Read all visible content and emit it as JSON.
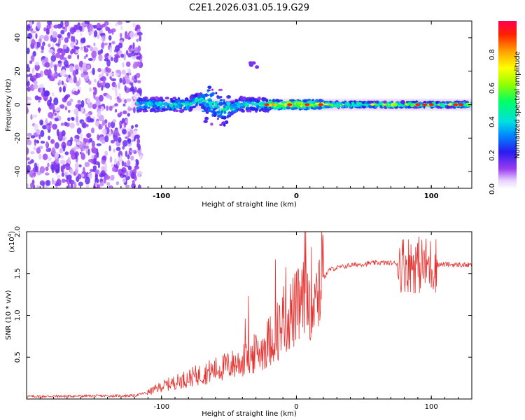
{
  "chart_data": [
    {
      "type": "heatmap",
      "title": "C2E1.2026.031.05.19.G29",
      "xlabel": "Height of straight line (km)",
      "ylabel": "Frequency (Hz)",
      "xlim": [
        -200,
        130
      ],
      "ylim": [
        -50,
        50
      ],
      "x_ticks": [
        -100,
        0,
        100
      ],
      "x_tick_labels": [
        "-100",
        "0",
        "100"
      ],
      "y_ticks": [
        -40,
        -20,
        0,
        20,
        40
      ],
      "y_tick_labels": [
        "-40",
        "-20",
        "0",
        "20",
        "40"
      ],
      "colorbar": {
        "label": "Normalized spectral amplitude",
        "range": [
          0,
          1
        ],
        "ticks": [
          0.0,
          0.2,
          0.4,
          0.6,
          0.8
        ],
        "tick_labels": [
          "0.0",
          "0.2",
          "0.4",
          "0.6",
          "0.8"
        ]
      },
      "description_series": {
        "noise_region_x": [
          -200,
          -115
        ],
        "signal_center_hz": 0
      }
    },
    {
      "type": "line",
      "xlabel": "Height of straight line (km)",
      "ylabel": "SNR (10 * v/v)",
      "scale_label": "(x10",
      "scale_exp": "4",
      "scale_close": ")",
      "xlim": [
        -200,
        130
      ],
      "ylim": [
        0,
        20000
      ],
      "x_ticks": [
        -100,
        0,
        100
      ],
      "x_tick_labels": [
        "-100",
        "0",
        "100"
      ],
      "y_ticks": [
        5000,
        10000,
        15000,
        20000
      ],
      "y_tick_labels": [
        "0.5",
        "1.0",
        "1.5",
        "2.0"
      ],
      "color": "#e8302e",
      "series": [
        {
          "name": "SNR",
          "envelope_x": [
            -200,
            -120,
            -110,
            -100,
            -80,
            -60,
            -40,
            -25,
            -15,
            -5,
            5,
            15,
            25,
            40,
            60,
            80,
            95,
            110,
            130
          ],
          "envelope_y": [
            300,
            400,
            800,
            1500,
            2500,
            3500,
            4500,
            6000,
            8000,
            10000,
            11500,
            13500,
            15500,
            16000,
            16300,
            16200,
            16000,
            16100,
            16000
          ]
        }
      ]
    }
  ]
}
